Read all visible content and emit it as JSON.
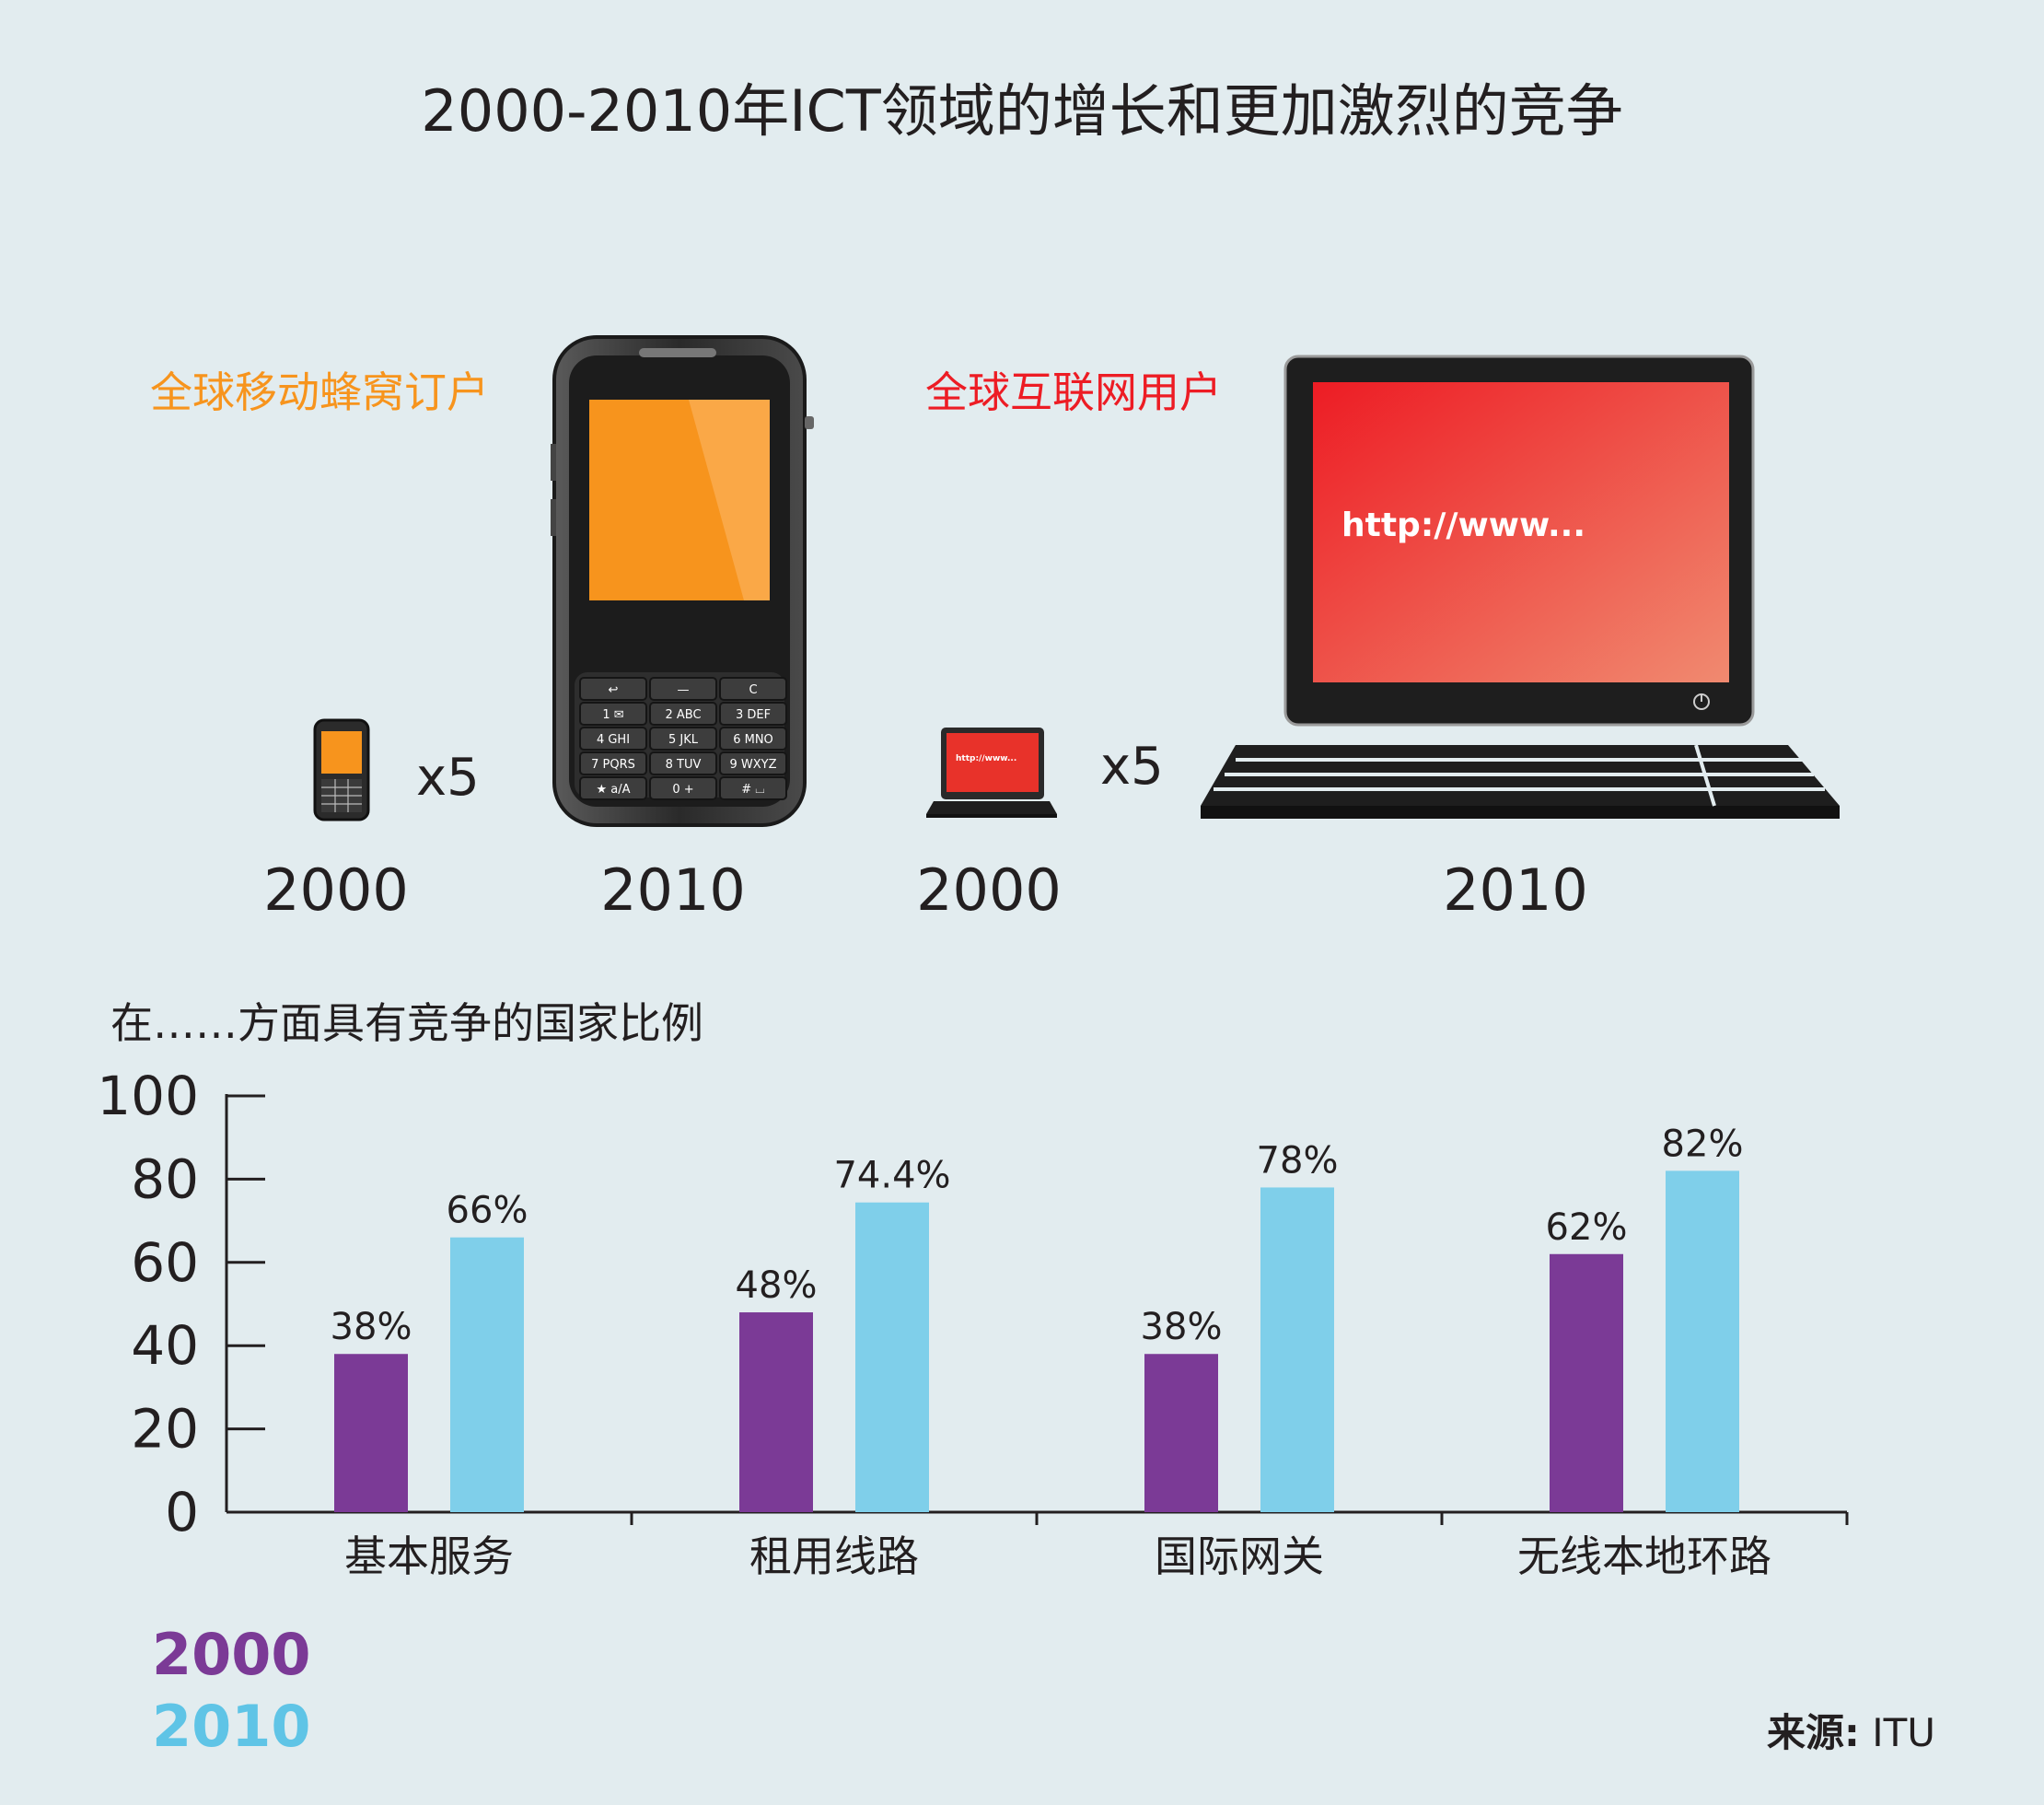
{
  "title": "2000-2010年ICT领域的增长和更加激烈的竞争",
  "mobile": {
    "label": "全球移动蜂窝订户",
    "multiplier": "x5",
    "year_from": "2000",
    "year_to": "2010",
    "keypad": [
      "↩",
      "—",
      "C",
      "1 ✉",
      "2 ABC",
      "3 DEF",
      "4 GHI",
      "5 JKL",
      "6 MNO",
      "7 PQRS",
      "8 TUV",
      "9 WXYZ",
      "★ a/A",
      "0 +",
      "# ⌴"
    ]
  },
  "internet": {
    "label": "全球互联网用户",
    "multiplier": "x5",
    "year_from": "2000",
    "year_to": "2010",
    "screen_text": "http://www...",
    "small_screen_text": "http://www..."
  },
  "colors": {
    "series_2000": "#7b3a96",
    "series_2010": "#7fcfea",
    "mobile_accent": "#f7941d",
    "internet_accent": "#ed1c24"
  },
  "chart_data": {
    "type": "bar",
    "title": "在……方面具有竞争的国家比例",
    "categories": [
      "基本服务",
      "租用线路",
      "国际网关",
      "无线本地环路"
    ],
    "series": [
      {
        "name": "2000",
        "values": [
          38,
          48,
          38,
          62
        ],
        "labels": [
          "38%",
          "48%",
          "38%",
          "62%"
        ]
      },
      {
        "name": "2010",
        "values": [
          66,
          74.4,
          78,
          82
        ],
        "labels": [
          "66%",
          "74.4%",
          "78%",
          "82%"
        ]
      }
    ],
    "ylim": [
      0,
      100
    ],
    "yticks": [
      "0",
      "20",
      "40",
      "60",
      "80",
      "100"
    ],
    "legend": "bottom-left",
    "grid": false
  },
  "legend": {
    "items": [
      "2000",
      "2010"
    ]
  },
  "source": {
    "label": "来源:",
    "value": "ITU"
  }
}
